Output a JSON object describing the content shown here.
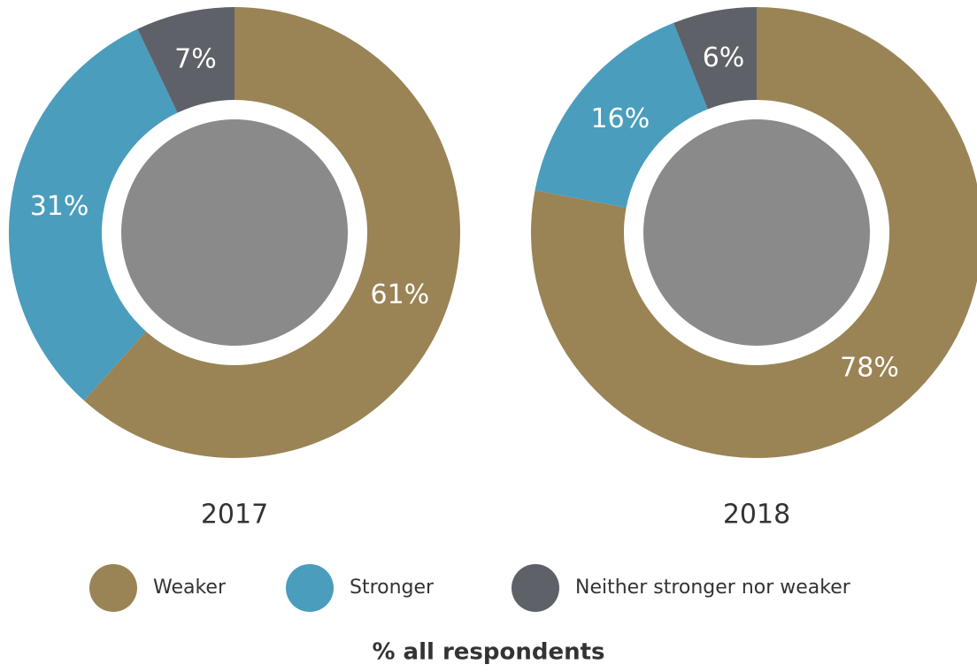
{
  "chart_data": [
    {
      "type": "pie",
      "title": "2017",
      "values": [
        61,
        31,
        7
      ],
      "value_labels": [
        "61%",
        "31%",
        "7%"
      ]
    },
    {
      "type": "pie",
      "title": "2018",
      "values": [
        78,
        16,
        6
      ],
      "value_labels": [
        "78%",
        "16%",
        "6%"
      ]
    }
  ],
  "legend": {
    "items": [
      {
        "name": "Weaker",
        "color": "#9a8455"
      },
      {
        "name": "Stronger",
        "color": "#4a9dbd"
      },
      {
        "name": "Neither stronger nor weaker",
        "color": "#5f6169"
      }
    ]
  },
  "caption": "% all respondents"
}
